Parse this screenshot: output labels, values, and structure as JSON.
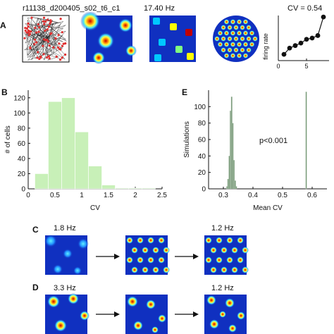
{
  "panels": {
    "a": {
      "letter": "A",
      "cell_id": "r11138_d200405_s02_t6_c1",
      "peak_rate": "17.40 Hz",
      "cv_label": "CV = 0.54",
      "inset": {
        "ylabel": "firing rate",
        "xticks": [
          "0",
          "5"
        ]
      }
    },
    "b": {
      "letter": "B"
    },
    "e": {
      "letter": "E",
      "annotation": "p<0.001"
    },
    "c": {
      "letter": "C",
      "rates": [
        "1.8 Hz",
        "1.2 Hz"
      ]
    },
    "d": {
      "letter": "D",
      "rates": [
        "3.3 Hz",
        "1.2 Hz"
      ]
    }
  },
  "colors": {
    "map_bg": "#1030c0",
    "hist_b": "#c8f0b8",
    "hist_e": "#7a9a7a",
    "trajectory": "#e03030",
    "inset_line": "#111111"
  },
  "chart_data": [
    {
      "id": "B",
      "type": "bar",
      "categories": [
        "0.25",
        "0.5",
        "0.75",
        "1.0",
        "1.25",
        "1.5",
        "1.75",
        "2.0",
        "2.25"
      ],
      "bin_edges": [
        0.125,
        0.375,
        0.625,
        0.875,
        1.125,
        1.375,
        1.625,
        1.875,
        2.125,
        2.375
      ],
      "values": [
        20,
        115,
        120,
        75,
        30,
        5,
        1,
        1,
        1
      ],
      "xlabel": "CV",
      "ylabel": "# of cells",
      "xlim": [
        0,
        2.5
      ],
      "ylim": [
        0,
        130
      ],
      "xticks": [
        "0",
        "0.5",
        "1",
        "1.5",
        "2",
        "2.5"
      ],
      "yticks": [
        "0",
        "20",
        "40",
        "60",
        "80",
        "100",
        "120"
      ]
    },
    {
      "id": "E",
      "type": "bar",
      "x": [
        0.312,
        0.316,
        0.32,
        0.324,
        0.328,
        0.332,
        0.336,
        0.34,
        0.344,
        0.58
      ],
      "values": [
        3,
        12,
        40,
        95,
        112,
        80,
        35,
        10,
        3,
        118
      ],
      "xlabel": "Mean CV",
      "ylabel": "Simulations",
      "xlim": [
        0.25,
        0.65
      ],
      "ylim": [
        0,
        120
      ],
      "xticks": [
        "0.3",
        "0.4",
        "0.5",
        "0.6"
      ],
      "yticks": [
        "0",
        "20",
        "40",
        "60",
        "80",
        "100"
      ]
    },
    {
      "id": "A-inset",
      "type": "line",
      "x": [
        1,
        2,
        3,
        4,
        5,
        6,
        7,
        8
      ],
      "y": [
        2.5,
        5,
        6,
        7,
        8.5,
        9,
        10,
        17.4
      ],
      "ylabel": "firing rate",
      "xlim": [
        0,
        9
      ],
      "ylim": [
        0,
        18
      ],
      "xticks": [
        "0",
        "5"
      ],
      "yticks": [
        "0",
        "10",
        "20"
      ]
    }
  ]
}
